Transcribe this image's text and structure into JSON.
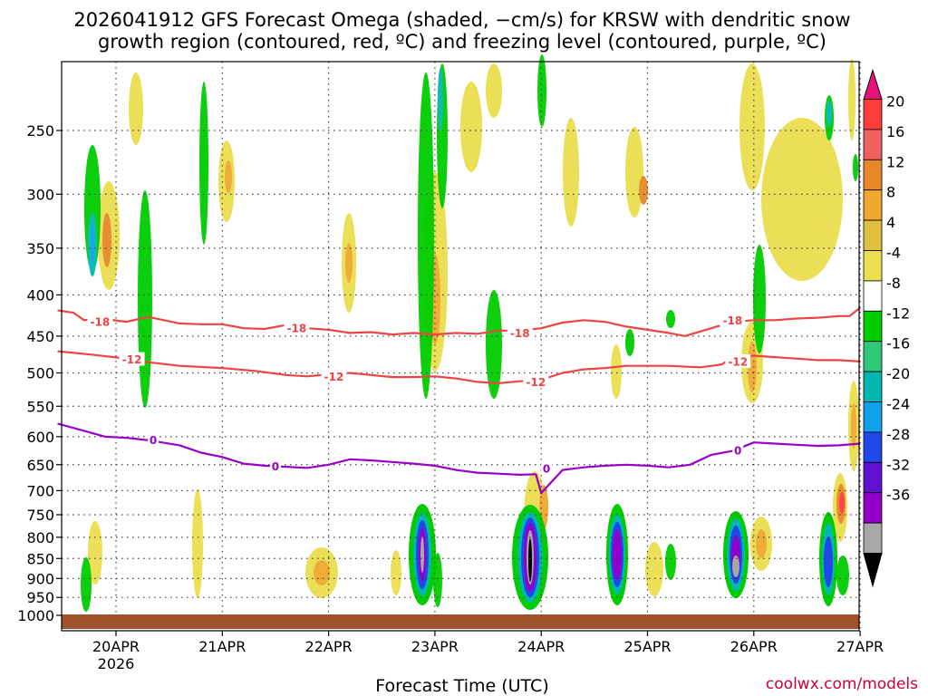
{
  "chart_data": {
    "type": "heatmap",
    "title_line1": "2026041912 GFS Forecast Omega (shaded, −cm/s) for KRSW with dendritic snow",
    "title_line2": "growth region (contoured, red, ºC) and freezing level (contoured, purple, ºC)",
    "xlabel": "Forecast Time (UTC)",
    "ylabel": "",
    "credit": "coolwx.com/models",
    "x_range": [
      -0.55,
      7.0
    ],
    "y_range": [
      1020,
      170
    ],
    "x_ticks": [
      {
        "day": 0,
        "label": "20APR",
        "sublabel": "2026"
      },
      {
        "day": 1,
        "label": "21APR",
        "sublabel": ""
      },
      {
        "day": 2,
        "label": "22APR",
        "sublabel": ""
      },
      {
        "day": 3,
        "label": "23APR",
        "sublabel": ""
      },
      {
        "day": 4,
        "label": "24APR",
        "sublabel": ""
      },
      {
        "day": 5,
        "label": "25APR",
        "sublabel": ""
      },
      {
        "day": 6,
        "label": "26APR",
        "sublabel": ""
      },
      {
        "day": 7,
        "label": "27APR",
        "sublabel": ""
      }
    ],
    "y_ticks": [
      250,
      300,
      350,
      400,
      450,
      500,
      550,
      600,
      650,
      700,
      750,
      800,
      850,
      900,
      950,
      1000
    ],
    "colorbar": {
      "ticks": [
        20,
        16,
        12,
        8,
        4,
        -4,
        -8,
        -12,
        -16,
        -20,
        -24,
        -28,
        -32,
        -36
      ],
      "colors": [
        "#e8137a",
        "#ff3c3c",
        "#f06060",
        "#e8872a",
        "#f0a830",
        "#e0c040",
        "#ecde50",
        "#ffffff",
        "#00cc00",
        "#30c878",
        "#00b8b0",
        "#10a0e8",
        "#2048e8",
        "#6010d0",
        "#9000c8",
        "#a8a8a8",
        "#000000"
      ]
    },
    "contours": [
      {
        "name": "dgz_minus18",
        "label": "-18",
        "color": "#ee4444",
        "x": [
          -0.55,
          -0.4,
          -0.3,
          -0.15,
          0.1,
          0.3,
          0.6,
          0.8,
          1.0,
          1.2,
          1.4,
          1.6,
          1.8,
          2.0,
          2.2,
          2.4,
          2.6,
          2.8,
          3.0,
          3.2,
          3.4,
          3.6,
          3.8,
          4.0,
          4.2,
          4.4,
          4.6,
          4.8,
          5.0,
          5.2,
          5.35,
          5.6,
          5.8,
          6.0,
          6.2,
          6.4,
          6.6,
          6.8,
          6.9,
          7.0
        ],
        "p": [
          418,
          421,
          430,
          428,
          432,
          426,
          434,
          435,
          435,
          440,
          441,
          436,
          440,
          442,
          446,
          445,
          448,
          446,
          448,
          446,
          447,
          443,
          443,
          440,
          433,
          430,
          432,
          438,
          442,
          446,
          450,
          440,
          432,
          430,
          430,
          428,
          427,
          425,
          425,
          415
        ],
        "labels": [
          {
            "x": -0.15,
            "p": 432
          },
          {
            "x": 1.7,
            "p": 440
          },
          {
            "x": 3.8,
            "p": 446
          },
          {
            "x": 5.8,
            "p": 430
          }
        ]
      },
      {
        "name": "dgz_minus12",
        "label": "-12",
        "color": "#ee4444",
        "x": [
          -0.55,
          -0.4,
          -0.2,
          0.1,
          0.3,
          0.6,
          1.0,
          1.3,
          1.6,
          1.8,
          2.0,
          2.2,
          2.4,
          2.6,
          2.8,
          3.0,
          3.2,
          3.4,
          3.6,
          3.8,
          4.0,
          4.2,
          4.4,
          4.6,
          4.8,
          5.0,
          5.2,
          5.5,
          5.7,
          5.8,
          6.0,
          6.2,
          6.4,
          6.6,
          6.8,
          7.0
        ],
        "p": [
          470,
          472,
          475,
          480,
          485,
          490,
          493,
          497,
          503,
          505,
          502,
          500,
          503,
          506,
          506,
          505,
          508,
          513,
          515,
          512,
          510,
          500,
          495,
          493,
          490,
          490,
          490,
          492,
          488,
          478,
          476,
          478,
          480,
          482,
          482,
          484
        ],
        "labels": [
          {
            "x": 0.15,
            "p": 481
          },
          {
            "x": 2.05,
            "p": 505
          },
          {
            "x": 3.95,
            "p": 513
          },
          {
            "x": 5.85,
            "p": 484
          }
        ]
      },
      {
        "name": "freezing_level_0",
        "label": "0",
        "color": "#9900cc",
        "x": [
          -0.55,
          -0.3,
          -0.1,
          0.1,
          0.3,
          0.6,
          0.8,
          1.0,
          1.2,
          1.4,
          1.6,
          1.8,
          2.0,
          2.2,
          2.4,
          2.6,
          2.8,
          3.0,
          3.2,
          3.4,
          3.6,
          3.8,
          3.95,
          4.0,
          4.2,
          4.4,
          4.6,
          4.8,
          5.0,
          5.2,
          5.4,
          5.6,
          5.8,
          6.0,
          6.2,
          6.4,
          6.6,
          6.8,
          7.0
        ],
        "p": [
          578,
          590,
          600,
          602,
          606,
          615,
          628,
          636,
          648,
          652,
          654,
          656,
          650,
          640,
          642,
          645,
          648,
          652,
          660,
          665,
          667,
          669,
          668,
          705,
          660,
          655,
          652,
          650,
          652,
          655,
          650,
          632,
          625,
          610,
          612,
          614,
          616,
          615,
          612
        ],
        "labels": [
          {
            "x": 0.35,
            "p": 606
          },
          {
            "x": 1.5,
            "p": 653
          },
          {
            "x": 4.05,
            "p": 657
          },
          {
            "x": 5.85,
            "p": 624
          }
        ]
      }
    ]
  }
}
